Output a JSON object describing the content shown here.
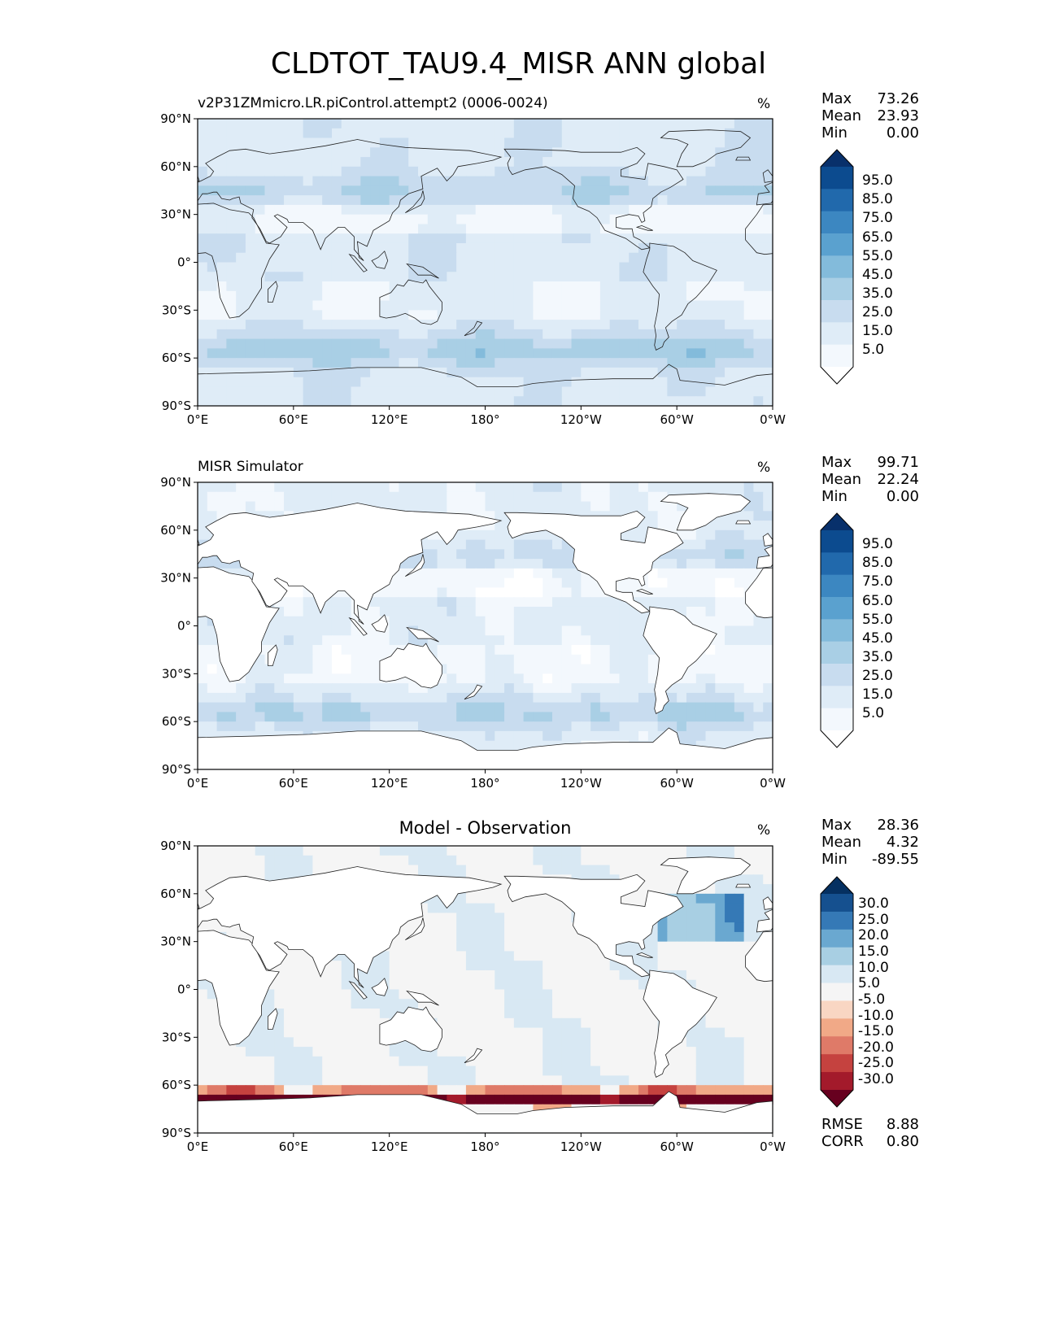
{
  "figure_title": "CLDTOT_TAU9.4_MISR ANN global",
  "colors": {
    "blues": [
      "#ffffff",
      "#f3f8fd",
      "#dfecf7",
      "#c8dcef",
      "#a9cfe5",
      "#83bbdb",
      "#5aa1cf",
      "#3c87c1",
      "#2169ac",
      "#0c4b8f",
      "#08306b"
    ],
    "diff": [
      "#67001f",
      "#a31a2b",
      "#c5423f",
      "#df7a68",
      "#f1a987",
      "#f9d6c3",
      "#f5f5f5",
      "#d8e8f3",
      "#a8cfe3",
      "#6aa8d0",
      "#3579b6",
      "#15508f",
      "#053061"
    ],
    "land_fill": "#ffffff",
    "coast": "#222222"
  },
  "map_axes": {
    "lat_ticks": [
      "90°N",
      "60°N",
      "30°N",
      "0°",
      "30°S",
      "60°S",
      "90°S"
    ],
    "lon_ticks": [
      "0°E",
      "60°E",
      "120°E",
      "180°",
      "120°W",
      "60°W",
      "0°W"
    ]
  },
  "panels": [
    {
      "title_left": "v2P31ZMmicro.LR.piControl.attempt2 (0006-0024)",
      "title_center": "",
      "units": "%",
      "stats": [
        {
          "name": "Max",
          "value": "73.26"
        },
        {
          "name": "Mean",
          "value": "23.93"
        },
        {
          "name": "Min",
          "value": "0.00"
        }
      ],
      "colorbar_ticks": [
        "95.0",
        "85.0",
        "75.0",
        "65.0",
        "55.0",
        "45.0",
        "35.0",
        "25.0",
        "15.0",
        "5.0"
      ],
      "footer_stats": []
    },
    {
      "title_left": "MISR Simulator",
      "title_center": "",
      "units": "%",
      "stats": [
        {
          "name": "Max",
          "value": "99.71"
        },
        {
          "name": "Mean",
          "value": "22.24"
        },
        {
          "name": "Min",
          "value": "0.00"
        }
      ],
      "colorbar_ticks": [
        "95.0",
        "85.0",
        "75.0",
        "65.0",
        "55.0",
        "45.0",
        "35.0",
        "25.0",
        "15.0",
        "5.0"
      ],
      "footer_stats": []
    },
    {
      "title_left": "",
      "title_center": "Model - Observation",
      "units": "%",
      "stats": [
        {
          "name": "Max",
          "value": "28.36"
        },
        {
          "name": "Mean",
          "value": "4.32"
        },
        {
          "name": "Min",
          "value": "-89.55"
        }
      ],
      "colorbar_ticks": [
        "30.0",
        "25.0",
        "20.0",
        "15.0",
        "10.0",
        "5.0",
        "-5.0",
        "-10.0",
        "-15.0",
        "-20.0",
        "-25.0",
        "-30.0"
      ],
      "footer_stats": [
        {
          "name": "RMSE",
          "value": "8.88"
        },
        {
          "name": "CORR",
          "value": "0.80"
        }
      ]
    }
  ]
}
